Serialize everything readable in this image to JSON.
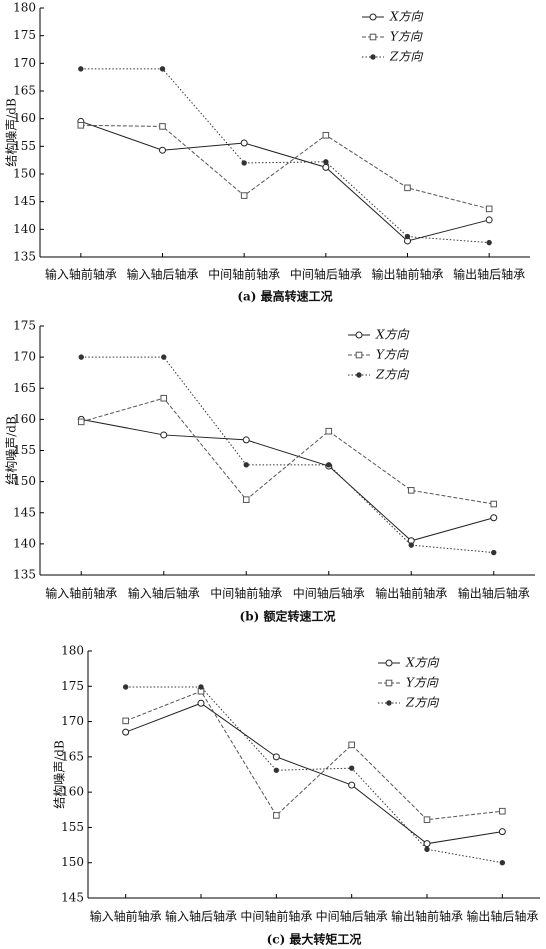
{
  "chart_data": [
    {
      "type": "line",
      "subtitle": "(a) 最高转速工况",
      "y_label": "结构噪声/dB",
      "categories": [
        "输入轴前轴承",
        "输入轴后轴承",
        "中间轴前轴承",
        "中间轴后轴承",
        "输出轴前轴承",
        "输出轴后轴承"
      ],
      "ylim": [
        135,
        180
      ],
      "yticks": [
        135,
        140,
        145,
        150,
        155,
        160,
        165,
        170,
        175,
        180
      ],
      "series": [
        {
          "name": "X方向",
          "color": "#222222",
          "marker": "circle",
          "linestyle": "solid",
          "values": [
            159.5,
            154.3,
            155.6,
            151.2,
            137.9,
            141.7
          ]
        },
        {
          "name": "Y方向",
          "color": "#555555",
          "marker": "square",
          "linestyle": "dashed",
          "values": [
            158.8,
            158.6,
            146.1,
            157.0,
            147.5,
            143.7
          ]
        },
        {
          "name": "Z方向",
          "color": "#333333",
          "marker": "star",
          "linestyle": "dotted",
          "values": [
            169.0,
            169.0,
            152.0,
            152.2,
            138.7,
            137.6
          ]
        }
      ]
    },
    {
      "type": "line",
      "subtitle": "(b) 额定转速工况",
      "y_label": "结构噪声/dB",
      "categories": [
        "输入轴前轴承",
        "输入轴后轴承",
        "中间轴前轴承",
        "中间轴后轴承",
        "输出轴前轴承",
        "输出轴后轴承"
      ],
      "ylim": [
        135,
        175
      ],
      "yticks": [
        135,
        140,
        145,
        150,
        155,
        160,
        165,
        170,
        175
      ],
      "series": [
        {
          "name": "X方向",
          "color": "#222222",
          "marker": "circle",
          "linestyle": "solid",
          "values": [
            160.0,
            157.5,
            156.7,
            152.5,
            140.5,
            144.2
          ]
        },
        {
          "name": "Y方向",
          "color": "#555555",
          "marker": "square",
          "linestyle": "dashed",
          "values": [
            159.6,
            163.4,
            147.1,
            158.1,
            148.6,
            146.4
          ]
        },
        {
          "name": "Z方向",
          "color": "#333333",
          "marker": "star",
          "linestyle": "dotted",
          "values": [
            170.0,
            170.0,
            152.7,
            152.7,
            139.8,
            138.6
          ]
        }
      ]
    },
    {
      "type": "line",
      "subtitle": "(c) 最大转矩工况",
      "y_label": "结构噪声/dB",
      "categories": [
        "输入轴前轴承",
        "输入轴后轴承",
        "中间轴前轴承",
        "中间轴后轴承",
        "输出轴前轴承",
        "输出轴后轴承"
      ],
      "ylim": [
        145,
        180
      ],
      "yticks": [
        145,
        150,
        155,
        160,
        165,
        170,
        175,
        180
      ],
      "series": [
        {
          "name": "X方向",
          "color": "#222222",
          "marker": "circle",
          "linestyle": "solid",
          "values": [
            168.5,
            172.6,
            165.0,
            161.0,
            152.7,
            154.4
          ]
        },
        {
          "name": "Y方向",
          "color": "#555555",
          "marker": "square",
          "linestyle": "dashed",
          "values": [
            170.1,
            174.3,
            156.7,
            166.7,
            156.1,
            157.3
          ]
        },
        {
          "name": "Z方向",
          "color": "#333333",
          "marker": "star",
          "linestyle": "dotted",
          "values": [
            174.9,
            174.9,
            163.1,
            163.4,
            151.9,
            150.0
          ]
        }
      ]
    }
  ]
}
